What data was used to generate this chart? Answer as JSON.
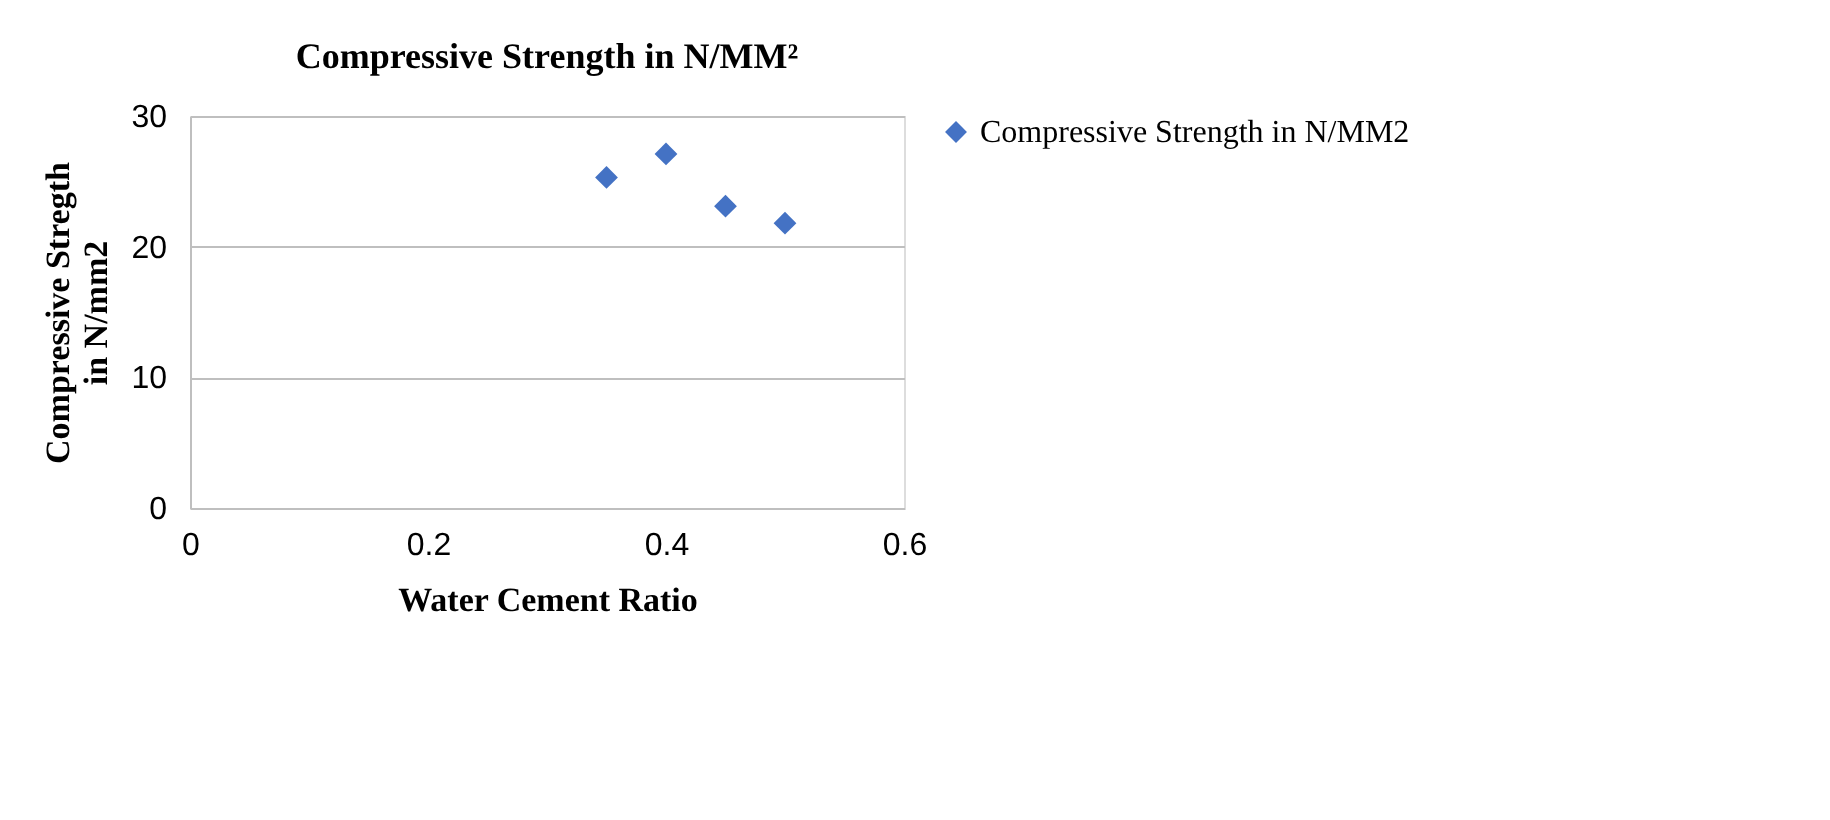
{
  "chart_data": {
    "type": "scatter",
    "title": "Compressive Strength in N/MM²",
    "xlabel": "Water  Cement Ratio",
    "ylabel": "Compressive Stregth in N/mm2",
    "x": [
      0.35,
      0.4,
      0.45,
      0.5
    ],
    "series": [
      {
        "name": "Compressive Strength in N/MM2",
        "color": "#4472c4",
        "values": [
          25.3,
          27.1,
          23.1,
          21.8
        ]
      }
    ],
    "xlim": [
      0,
      0.6
    ],
    "xticks": [
      0,
      0.2,
      0.4,
      0.6
    ],
    "ylim": [
      0,
      30
    ],
    "yticks": [
      0,
      10,
      20,
      30
    ],
    "grid": "y",
    "legend": "right",
    "marker": "diamond"
  }
}
